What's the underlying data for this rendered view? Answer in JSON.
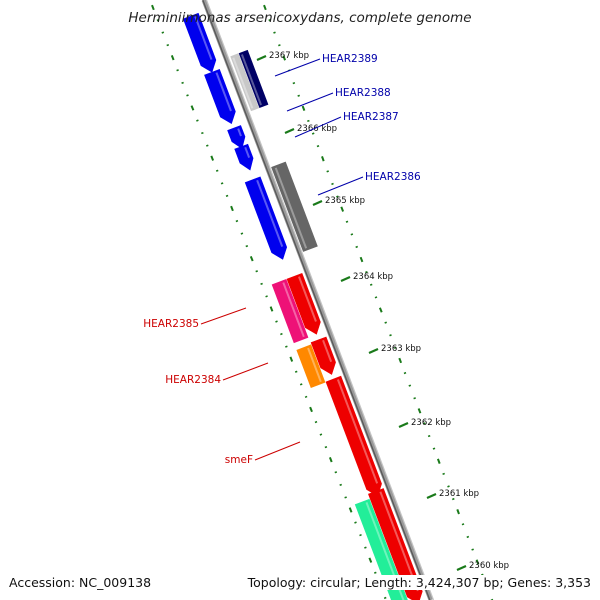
{
  "title": "Herminiimonas arsenicoxydans, complete genome",
  "footer": {
    "accession": "Accession: NC_009138",
    "summary": "Topology: circular; Length: 3,424,307 bp; Genes: 3,353"
  },
  "colors": {
    "backbone": "#8c8c8c",
    "tick": "#1a7a1a",
    "label_forward": "#0000aa",
    "label_reverse": "#cc0000"
  },
  "scale_marks": [
    {
      "label": "2367 kbp"
    },
    {
      "label": "2366 kbp"
    },
    {
      "label": "2365 kbp"
    },
    {
      "label": "2364 kbp"
    },
    {
      "label": "2363 kbp"
    },
    {
      "label": "2362 kbp"
    },
    {
      "label": "2361 kbp"
    },
    {
      "label": "2360 kbp"
    }
  ],
  "gene_labels": [
    {
      "name": "HEAR2389",
      "strand": "forward"
    },
    {
      "name": "HEAR2388",
      "strand": "forward"
    },
    {
      "name": "HEAR2387",
      "strand": "forward"
    },
    {
      "name": "HEAR2386",
      "strand": "forward"
    },
    {
      "name": "HEAR2385",
      "strand": "reverse"
    },
    {
      "name": "HEAR2384",
      "strand": "reverse"
    },
    {
      "name": "smeF",
      "strand": "reverse"
    }
  ],
  "features": [
    {
      "strand": "forward",
      "color": "#0000ee",
      "shape": "arrow"
    },
    {
      "strand": "forward",
      "color": "#0000ee",
      "shape": "arrow"
    },
    {
      "strand": "forward",
      "color": "#c8c8c8",
      "shape": "box"
    },
    {
      "strand": "forward",
      "color": "#000066",
      "shape": "box"
    },
    {
      "strand": "forward",
      "color": "#0000ee",
      "shape": "arrow"
    },
    {
      "strand": "forward",
      "color": "#0000ee",
      "shape": "arrow"
    },
    {
      "strand": "forward",
      "color": "#0000ee",
      "shape": "arrow"
    },
    {
      "strand": "forward",
      "color": "#666666",
      "shape": "box"
    },
    {
      "strand": "reverse",
      "color": "#ee1177",
      "shape": "box"
    },
    {
      "strand": "reverse",
      "color": "#ee0000",
      "shape": "arrow"
    },
    {
      "strand": "reverse",
      "color": "#ff8800",
      "shape": "box"
    },
    {
      "strand": "reverse",
      "color": "#ee0000",
      "shape": "arrow"
    },
    {
      "strand": "reverse",
      "color": "#ee0000",
      "shape": "arrow"
    },
    {
      "strand": "reverse",
      "color": "#22ee99",
      "shape": "box"
    },
    {
      "strand": "reverse",
      "color": "#ee0000",
      "shape": "arrow"
    }
  ]
}
